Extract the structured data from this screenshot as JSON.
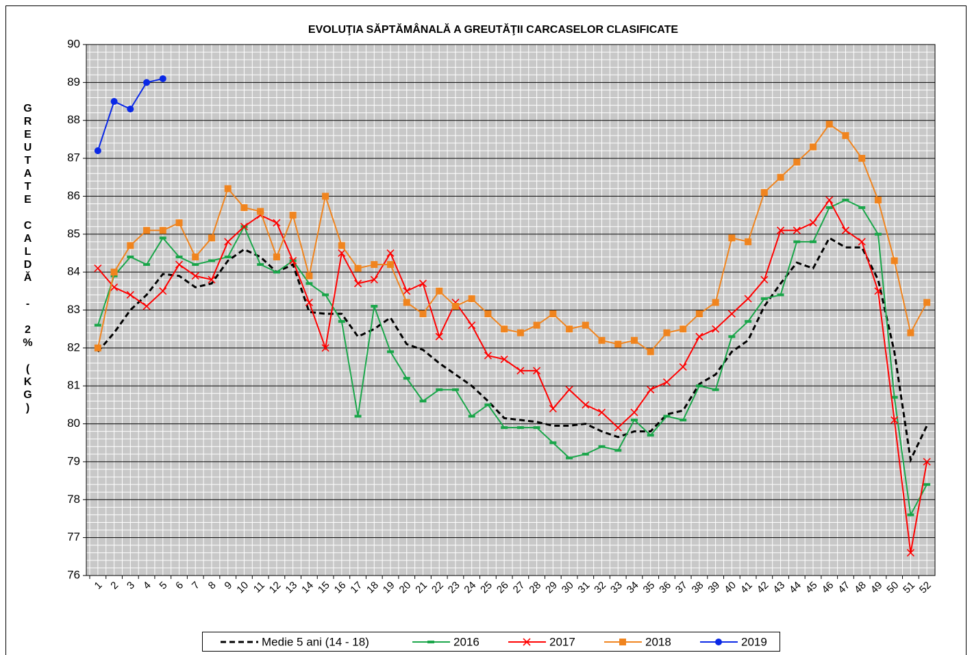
{
  "chart_data": {
    "type": "line",
    "title": "EVOLUŢIA SĂPTĂMÂNALĂ A GREUTĂŢII CARCASELOR CLASIFICATE",
    "y_label": "GREUTATE CALDĂ - 2% (KG)",
    "categories": [
      1,
      2,
      3,
      4,
      5,
      6,
      7,
      8,
      9,
      10,
      11,
      12,
      13,
      14,
      15,
      16,
      17,
      18,
      19,
      20,
      21,
      22,
      23,
      24,
      25,
      26,
      27,
      28,
      29,
      30,
      31,
      32,
      33,
      34,
      35,
      36,
      37,
      38,
      39,
      40,
      41,
      42,
      43,
      44,
      45,
      46,
      47,
      48,
      49,
      50,
      51,
      52
    ],
    "ylim": [
      76,
      90
    ],
    "yticks": [
      76,
      77,
      78,
      79,
      80,
      81,
      82,
      83,
      84,
      85,
      86,
      87,
      88,
      89,
      90
    ],
    "grid": true,
    "legend": "bottom",
    "series": [
      {
        "name": "Medie 5 ani (14 - 18)",
        "color": "#000000",
        "dash": true,
        "marker": "none",
        "values": [
          81.9,
          82.4,
          83.0,
          83.4,
          83.95,
          83.9,
          83.6,
          83.7,
          84.3,
          84.6,
          84.4,
          84.0,
          84.2,
          82.95,
          82.9,
          82.9,
          82.3,
          82.5,
          82.8,
          82.1,
          81.95,
          81.6,
          81.3,
          81.0,
          80.6,
          80.15,
          80.1,
          80.05,
          79.95,
          79.95,
          80.0,
          79.8,
          79.65,
          79.8,
          79.8,
          80.25,
          80.35,
          81.05,
          81.3,
          81.9,
          82.2,
          83.1,
          83.7,
          84.25,
          84.1,
          84.9,
          84.65,
          84.65,
          83.8,
          81.9,
          79.05,
          79.95
        ]
      },
      {
        "name": "2016",
        "color": "#1aa64a",
        "marker": "dash",
        "values": [
          82.6,
          83.9,
          84.4,
          84.2,
          84.9,
          84.4,
          84.2,
          84.3,
          84.4,
          85.2,
          84.2,
          84.0,
          84.3,
          83.7,
          83.4,
          82.7,
          80.2,
          83.1,
          81.9,
          81.2,
          80.6,
          80.9,
          80.9,
          80.2,
          80.5,
          79.9,
          79.9,
          79.9,
          79.5,
          79.1,
          79.2,
          79.4,
          79.3,
          80.1,
          79.7,
          80.2,
          80.1,
          81.0,
          80.9,
          82.3,
          82.7,
          83.3,
          83.4,
          84.8,
          84.8,
          85.7,
          85.9,
          85.7,
          85.0,
          80.7,
          77.6,
          78.4
        ]
      },
      {
        "name": "2017",
        "color": "#ff0000",
        "marker": "x",
        "values": [
          84.1,
          83.6,
          83.4,
          83.1,
          83.5,
          84.2,
          83.9,
          83.8,
          84.8,
          85.2,
          85.5,
          85.3,
          84.3,
          83.2,
          82.0,
          84.5,
          83.7,
          83.8,
          84.5,
          83.5,
          83.7,
          82.3,
          83.2,
          82.6,
          81.8,
          81.7,
          81.4,
          81.4,
          80.4,
          80.9,
          80.5,
          80.3,
          79.9,
          80.3,
          80.9,
          81.1,
          81.5,
          82.3,
          82.5,
          82.9,
          83.3,
          83.8,
          85.1,
          85.1,
          85.3,
          85.9,
          85.1,
          84.8,
          83.5,
          80.1,
          76.6,
          79.0
        ]
      },
      {
        "name": "2018",
        "color": "#f0841e",
        "marker": "square",
        "values": [
          82.0,
          84.0,
          84.7,
          85.1,
          85.1,
          85.3,
          84.4,
          84.9,
          86.2,
          85.7,
          85.6,
          84.4,
          85.5,
          83.9,
          86.0,
          84.7,
          84.1,
          84.2,
          84.2,
          83.2,
          82.9,
          83.5,
          83.1,
          83.3,
          82.9,
          82.5,
          82.4,
          82.6,
          82.9,
          82.5,
          82.6,
          82.2,
          82.1,
          82.2,
          81.9,
          82.4,
          82.5,
          82.9,
          83.2,
          84.9,
          84.8,
          86.1,
          86.5,
          86.9,
          87.3,
          87.9,
          87.6,
          87.0,
          85.9,
          84.3,
          82.4,
          83.2
        ]
      },
      {
        "name": "2019",
        "color": "#0a28e6",
        "marker": "circle",
        "values": [
          87.2,
          88.5,
          88.3,
          89.0,
          89.1,
          null,
          null,
          null,
          null,
          null,
          null,
          null,
          null,
          null,
          null,
          null,
          null,
          null,
          null,
          null,
          null,
          null,
          null,
          null,
          null,
          null,
          null,
          null,
          null,
          null,
          null,
          null,
          null,
          null,
          null,
          null,
          null,
          null,
          null,
          null,
          null,
          null,
          null,
          null,
          null,
          null,
          null,
          null,
          null,
          null,
          null,
          null
        ]
      }
    ]
  }
}
